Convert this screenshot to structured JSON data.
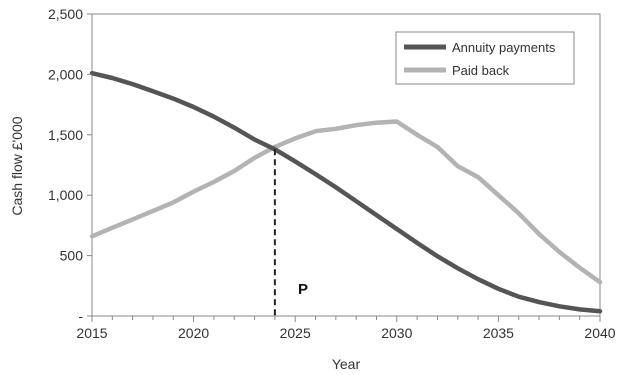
{
  "chart_data": {
    "type": "line",
    "title": "",
    "xlabel": "Year",
    "ylabel": "Cash flow £'000",
    "xlim": [
      2015,
      2040
    ],
    "ylim": [
      0,
      2500
    ],
    "x_ticks": [
      2015,
      2020,
      2025,
      2030,
      2035,
      2040
    ],
    "x_tick_labels": [
      "2015",
      "2020",
      "2025",
      "2030",
      "2035",
      "2040"
    ],
    "y_ticks": [
      0,
      500,
      1000,
      1500,
      2000,
      2500
    ],
    "y_tick_labels": [
      "-",
      "500",
      "1,000",
      "1,500",
      "2,000",
      "2,500"
    ],
    "grid": false,
    "legend_position": "top-right",
    "series": [
      {
        "name": "Annuity payments",
        "color": "#555555",
        "x": [
          2015,
          2016,
          2017,
          2018,
          2019,
          2020,
          2021,
          2022,
          2023,
          2024,
          2025,
          2026,
          2027,
          2028,
          2029,
          2030,
          2031,
          2032,
          2033,
          2034,
          2035,
          2036,
          2037,
          2038,
          2039,
          2040
        ],
        "y": [
          2010,
          1970,
          1920,
          1860,
          1800,
          1730,
          1650,
          1560,
          1460,
          1380,
          1280,
          1175,
          1065,
          950,
          835,
          720,
          605,
          495,
          395,
          305,
          225,
          160,
          115,
          80,
          55,
          40
        ]
      },
      {
        "name": "Paid back",
        "color": "#b3b3b3",
        "x": [
          2015,
          2016,
          2017,
          2018,
          2019,
          2020,
          2021,
          2022,
          2023,
          2024,
          2025,
          2026,
          2027,
          2028,
          2029,
          2030,
          2031,
          2032,
          2033,
          2034,
          2035,
          2036,
          2037,
          2038,
          2039,
          2040
        ],
        "y": [
          660,
          730,
          800,
          870,
          940,
          1030,
          1110,
          1200,
          1310,
          1400,
          1470,
          1530,
          1550,
          1580,
          1600,
          1610,
          1500,
          1400,
          1240,
          1150,
          1000,
          850,
          680,
          530,
          400,
          280
        ]
      }
    ],
    "annotations": [
      {
        "type": "vline",
        "x": 2024,
        "y_top": 1380,
        "style": "dashed",
        "label": "P"
      }
    ]
  }
}
